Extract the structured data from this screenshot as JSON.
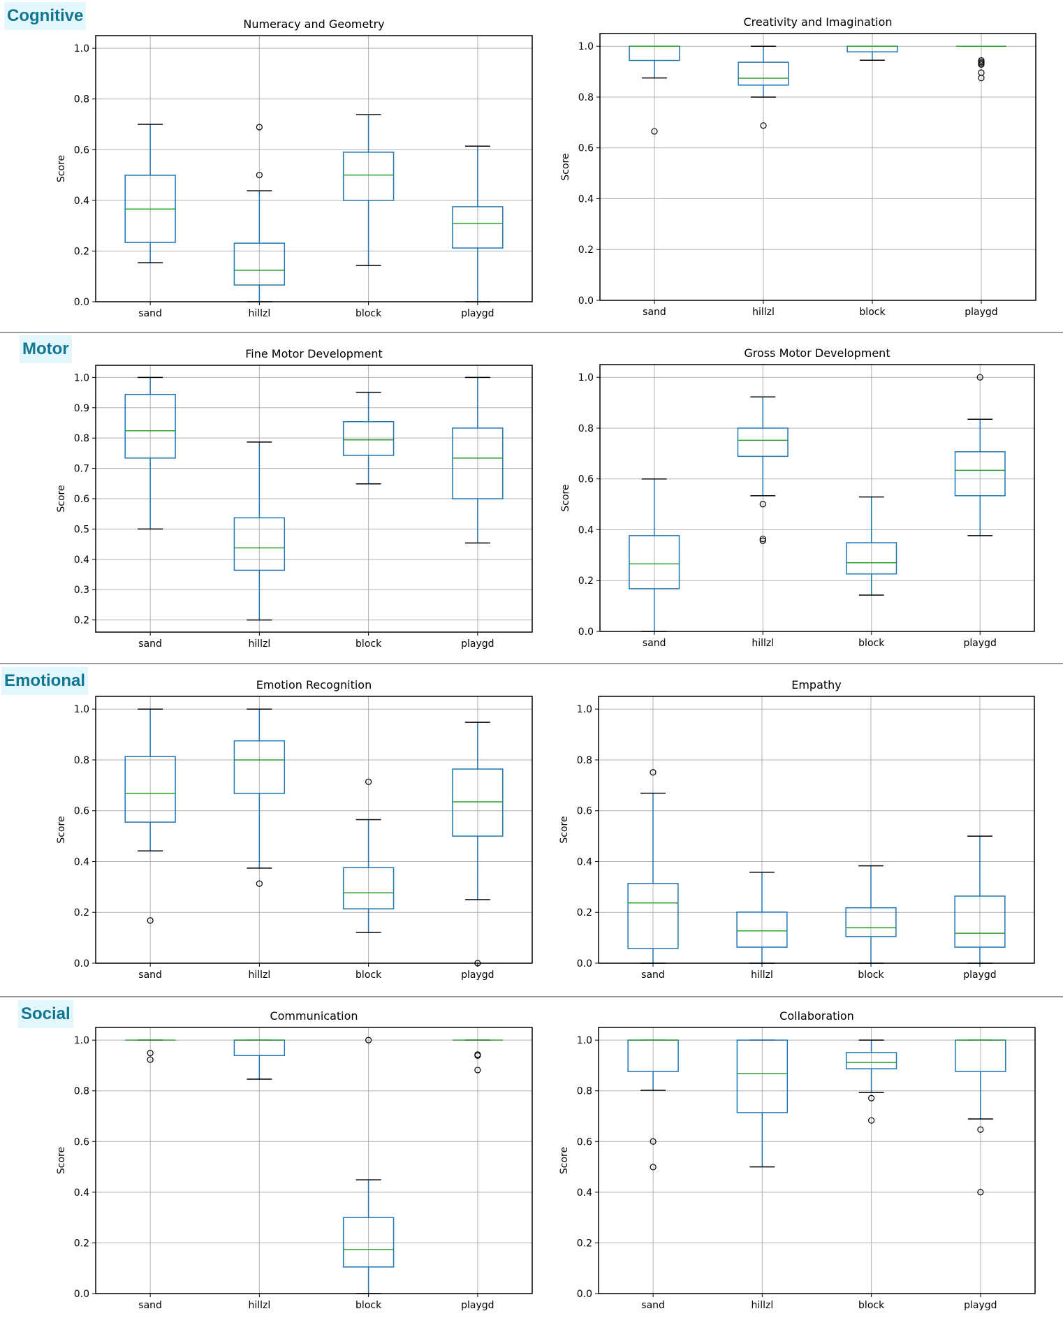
{
  "sections": [
    {
      "label": "Cognitive"
    },
    {
      "label": "Motor"
    },
    {
      "label": "Emotional"
    },
    {
      "label": "Social"
    }
  ],
  "chart_data": [
    {
      "type": "boxplot",
      "section": "Cognitive",
      "title": "Numeracy and Geometry",
      "xlabel": "",
      "ylabel": "Score",
      "categories": [
        "sand",
        "hillzl",
        "block",
        "playgd"
      ],
      "ylim": [
        0.0,
        1.05
      ],
      "yticks": [
        0.0,
        0.2,
        0.4,
        0.6,
        0.8,
        1.0
      ],
      "grid": true,
      "boxes": [
        {
          "category": "sand",
          "whisker_low": 0.154,
          "q1": 0.234,
          "median": 0.366,
          "q3": 0.499,
          "whisker_high": 0.7,
          "outliers": []
        },
        {
          "category": "hillzl",
          "whisker_low": 0.0,
          "q1": 0.066,
          "median": 0.124,
          "q3": 0.231,
          "whisker_high": 0.438,
          "outliers": [
            0.5,
            0.689
          ]
        },
        {
          "category": "block",
          "whisker_low": 0.143,
          "q1": 0.4,
          "median": 0.5,
          "q3": 0.59,
          "whisker_high": 0.738,
          "outliers": []
        },
        {
          "category": "playgd",
          "whisker_low": 0.0,
          "q1": 0.212,
          "median": 0.309,
          "q3": 0.375,
          "whisker_high": 0.614,
          "outliers": []
        }
      ]
    },
    {
      "type": "boxplot",
      "section": "Cognitive",
      "title": "Creativity and Imagination",
      "xlabel": "",
      "ylabel": "Score",
      "categories": [
        "sand",
        "hillzl",
        "block",
        "playgd"
      ],
      "ylim": [
        0.0,
        1.05
      ],
      "yticks": [
        0.0,
        0.2,
        0.4,
        0.6,
        0.8,
        1.0
      ],
      "grid": true,
      "boxes": [
        {
          "category": "sand",
          "whisker_low": 0.875,
          "q1": 0.944,
          "median": 1.0,
          "q3": 1.0,
          "whisker_high": 1.0,
          "outliers": [
            0.665
          ]
        },
        {
          "category": "hillzl",
          "whisker_low": 0.8,
          "q1": 0.847,
          "median": 0.874,
          "q3": 0.937,
          "whisker_high": 1.0,
          "outliers": [
            0.688
          ]
        },
        {
          "category": "block",
          "whisker_low": 0.945,
          "q1": 0.978,
          "median": 1.0,
          "q3": 1.0,
          "whisker_high": 1.0,
          "outliers": []
        },
        {
          "category": "playgd",
          "whisker_low": 1.0,
          "q1": 1.0,
          "median": 1.0,
          "q3": 1.0,
          "whisker_high": 1.0,
          "outliers": [
            0.944,
            0.938,
            0.933,
            0.928,
            0.896,
            0.875
          ]
        }
      ]
    },
    {
      "type": "boxplot",
      "section": "Motor",
      "title": "Fine Motor Development",
      "xlabel": "",
      "ylabel": "Score",
      "categories": [
        "sand",
        "hillzl",
        "block",
        "playgd"
      ],
      "ylim": [
        0.16,
        1.04
      ],
      "yticks": [
        0.2,
        0.3,
        0.4,
        0.5,
        0.6,
        0.7,
        0.8,
        0.9,
        1.0
      ],
      "grid": true,
      "boxes": [
        {
          "category": "sand",
          "whisker_low": 0.5,
          "q1": 0.734,
          "median": 0.824,
          "q3": 0.944,
          "whisker_high": 1.0,
          "outliers": []
        },
        {
          "category": "hillzl",
          "whisker_low": 0.2,
          "q1": 0.364,
          "median": 0.438,
          "q3": 0.537,
          "whisker_high": 0.787,
          "outliers": []
        },
        {
          "category": "block",
          "whisker_low": 0.649,
          "q1": 0.743,
          "median": 0.794,
          "q3": 0.854,
          "whisker_high": 0.951,
          "outliers": []
        },
        {
          "category": "playgd",
          "whisker_low": 0.454,
          "q1": 0.6,
          "median": 0.734,
          "q3": 0.833,
          "whisker_high": 1.0,
          "outliers": []
        }
      ]
    },
    {
      "type": "boxplot",
      "section": "Motor",
      "title": "Gross Motor Development",
      "xlabel": "",
      "ylabel": "Score",
      "categories": [
        "sand",
        "hillzl",
        "block",
        "playgd"
      ],
      "ylim": [
        0.0,
        1.05
      ],
      "yticks": [
        0.0,
        0.2,
        0.4,
        0.6,
        0.8,
        1.0
      ],
      "grid": true,
      "boxes": [
        {
          "category": "sand",
          "whisker_low": 0.0,
          "q1": 0.168,
          "median": 0.266,
          "q3": 0.377,
          "whisker_high": 0.6,
          "outliers": []
        },
        {
          "category": "hillzl",
          "whisker_low": 0.534,
          "q1": 0.689,
          "median": 0.752,
          "q3": 0.8,
          "whisker_high": 0.923,
          "outliers": [
            0.501,
            0.364,
            0.357
          ]
        },
        {
          "category": "block",
          "whisker_low": 0.143,
          "q1": 0.226,
          "median": 0.27,
          "q3": 0.349,
          "whisker_high": 0.529,
          "outliers": []
        },
        {
          "category": "playgd",
          "whisker_low": 0.377,
          "q1": 0.534,
          "median": 0.634,
          "q3": 0.707,
          "whisker_high": 0.835,
          "outliers": [
            1.0
          ]
        }
      ]
    },
    {
      "type": "boxplot",
      "section": "Emotional",
      "title": "Emotion Recognition",
      "xlabel": "",
      "ylabel": "Score",
      "categories": [
        "sand",
        "hillzl",
        "block",
        "playgd"
      ],
      "ylim": [
        0.0,
        1.05
      ],
      "yticks": [
        0.0,
        0.2,
        0.4,
        0.6,
        0.8,
        1.0
      ],
      "grid": true,
      "boxes": [
        {
          "category": "sand",
          "whisker_low": 0.442,
          "q1": 0.555,
          "median": 0.668,
          "q3": 0.813,
          "whisker_high": 1.0,
          "outliers": [
            0.168
          ]
        },
        {
          "category": "hillzl",
          "whisker_low": 0.374,
          "q1": 0.668,
          "median": 0.8,
          "q3": 0.875,
          "whisker_high": 1.0,
          "outliers": [
            0.313
          ]
        },
        {
          "category": "block",
          "whisker_low": 0.121,
          "q1": 0.214,
          "median": 0.277,
          "q3": 0.376,
          "whisker_high": 0.565,
          "outliers": [
            0.714
          ]
        },
        {
          "category": "playgd",
          "whisker_low": 0.25,
          "q1": 0.5,
          "median": 0.635,
          "q3": 0.764,
          "whisker_high": 0.948,
          "outliers": [
            0.0
          ]
        }
      ]
    },
    {
      "type": "boxplot",
      "section": "Emotional",
      "title": "Empathy",
      "xlabel": "",
      "ylabel": "Score",
      "categories": [
        "sand",
        "hillzl",
        "block",
        "playgd"
      ],
      "ylim": [
        0.0,
        1.05
      ],
      "yticks": [
        0.0,
        0.2,
        0.4,
        0.6,
        0.8,
        1.0
      ],
      "grid": true,
      "boxes": [
        {
          "category": "sand",
          "whisker_low": 0.0,
          "q1": 0.058,
          "median": 0.237,
          "q3": 0.314,
          "whisker_high": 0.669,
          "outliers": [
            0.751
          ]
        },
        {
          "category": "hillzl",
          "whisker_low": 0.0,
          "q1": 0.063,
          "median": 0.127,
          "q3": 0.201,
          "whisker_high": 0.358,
          "outliers": []
        },
        {
          "category": "block",
          "whisker_low": 0.0,
          "q1": 0.105,
          "median": 0.14,
          "q3": 0.218,
          "whisker_high": 0.383,
          "outliers": []
        },
        {
          "category": "playgd",
          "whisker_low": 0.0,
          "q1": 0.063,
          "median": 0.118,
          "q3": 0.264,
          "whisker_high": 0.5,
          "outliers": []
        }
      ]
    },
    {
      "type": "boxplot",
      "section": "Social",
      "title": "Communication",
      "xlabel": "",
      "ylabel": "Score",
      "categories": [
        "sand",
        "hillzl",
        "block",
        "playgd"
      ],
      "ylim": [
        0.0,
        1.05
      ],
      "yticks": [
        0.0,
        0.2,
        0.4,
        0.6,
        0.8,
        1.0
      ],
      "grid": true,
      "boxes": [
        {
          "category": "sand",
          "whisker_low": 1.0,
          "q1": 1.0,
          "median": 1.0,
          "q3": 1.0,
          "whisker_high": 1.0,
          "outliers": [
            0.949,
            0.923
          ]
        },
        {
          "category": "hillzl",
          "whisker_low": 0.846,
          "q1": 0.939,
          "median": 1.0,
          "q3": 1.0,
          "whisker_high": 1.0,
          "outliers": []
        },
        {
          "category": "block",
          "whisker_low": 0.0,
          "q1": 0.105,
          "median": 0.174,
          "q3": 0.3,
          "whisker_high": 0.449,
          "outliers": [
            1.0
          ]
        },
        {
          "category": "playgd",
          "whisker_low": 1.0,
          "q1": 1.0,
          "median": 1.0,
          "q3": 1.0,
          "whisker_high": 1.0,
          "outliers": [
            0.943,
            0.939,
            0.882
          ]
        }
      ]
    },
    {
      "type": "boxplot",
      "section": "Social",
      "title": "Collaboration",
      "xlabel": "",
      "ylabel": "Score",
      "categories": [
        "sand",
        "hillzl",
        "block",
        "playgd"
      ],
      "ylim": [
        0.0,
        1.05
      ],
      "yticks": [
        0.0,
        0.2,
        0.4,
        0.6,
        0.8,
        1.0
      ],
      "grid": true,
      "boxes": [
        {
          "category": "sand",
          "whisker_low": 0.802,
          "q1": 0.876,
          "median": 1.0,
          "q3": 1.0,
          "whisker_high": 1.0,
          "outliers": [
            0.6,
            0.499
          ]
        },
        {
          "category": "hillzl",
          "whisker_low": 0.5,
          "q1": 0.714,
          "median": 0.868,
          "q3": 1.0,
          "whisker_high": 1.0,
          "outliers": []
        },
        {
          "category": "block",
          "whisker_low": 0.793,
          "q1": 0.887,
          "median": 0.912,
          "q3": 0.951,
          "whisker_high": 1.0,
          "outliers": [
            0.771,
            0.683
          ]
        },
        {
          "category": "playgd",
          "whisker_low": 0.689,
          "q1": 0.876,
          "median": 1.0,
          "q3": 1.0,
          "whisker_high": 1.0,
          "outliers": [
            0.647,
            0.4
          ]
        }
      ]
    }
  ],
  "colors": {
    "box": "#1f77b4",
    "median": "#2ca02c",
    "cap": "#000000",
    "outlier": "#000000",
    "grid": "#b0b0b0",
    "section_label_text": "#117690",
    "section_label_bg": "#e2f6fc",
    "divider": "#9a9a9a"
  }
}
